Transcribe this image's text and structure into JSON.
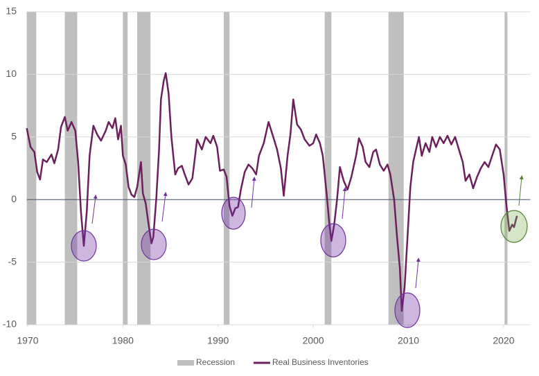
{
  "chart_data": {
    "type": "line",
    "xlim": [
      1969.9,
      2022.8
    ],
    "xticks": [
      1970,
      1980,
      1990,
      2000,
      2010,
      2020
    ],
    "ylim": [
      -10,
      15
    ],
    "yticks": [
      -10,
      -5,
      0,
      5,
      10,
      15
    ],
    "grid": true,
    "recessions": {
      "name": "Recession",
      "color": "#bfbfbf",
      "ranges": [
        [
          1969.9,
          1970.9
        ],
        [
          1973.9,
          1975.2
        ],
        [
          1980.0,
          1980.5
        ],
        [
          1981.5,
          1982.9
        ],
        [
          1990.6,
          1991.2
        ],
        [
          2001.2,
          2001.9
        ],
        [
          2007.9,
          2009.5
        ],
        [
          2020.1,
          2020.4
        ]
      ]
    },
    "x": [
      1969.9,
      1970.3,
      1970.7,
      1971.0,
      1971.3,
      1971.6,
      1972.0,
      1972.5,
      1972.8,
      1973.2,
      1973.5,
      1973.9,
      1974.2,
      1974.6,
      1975.0,
      1975.3,
      1975.6,
      1975.9,
      1976.2,
      1976.5,
      1976.9,
      1977.3,
      1977.7,
      1978.2,
      1978.5,
      1978.9,
      1979.2,
      1979.5,
      1979.8,
      1980.0,
      1980.3,
      1980.6,
      1980.9,
      1981.2,
      1981.5,
      1981.9,
      1982.1,
      1982.4,
      1982.7,
      1983.0,
      1983.2,
      1983.5,
      1983.8,
      1984.0,
      1984.3,
      1984.5,
      1984.8,
      1985.1,
      1985.5,
      1985.8,
      1986.2,
      1986.5,
      1986.9,
      1987.3,
      1987.8,
      1988.3,
      1988.7,
      1989.2,
      1989.5,
      1989.9,
      1990.2,
      1990.6,
      1990.9,
      1991.2,
      1991.5,
      1991.8,
      1992.1,
      1992.4,
      1992.8,
      1993.2,
      1993.6,
      1994.0,
      1994.3,
      1994.8,
      1995.3,
      1995.8,
      1996.2,
      1996.6,
      1996.9,
      1997.3,
      1997.6,
      1997.9,
      1998.3,
      1998.7,
      1999.1,
      1999.6,
      2000.0,
      2000.3,
      2000.7,
      2001.0,
      2001.4,
      2001.7,
      2001.9,
      2002.2,
      2002.5,
      2002.8,
      2003.2,
      2003.6,
      2004.0,
      2004.5,
      2004.8,
      2005.2,
      2005.5,
      2005.9,
      2006.3,
      2006.6,
      2007.0,
      2007.4,
      2007.8,
      2008.1,
      2008.5,
      2008.8,
      2009.1,
      2009.3,
      2009.6,
      2009.9,
      2010.2,
      2010.5,
      2010.8,
      2011.1,
      2011.4,
      2011.8,
      2012.2,
      2012.5,
      2012.9,
      2013.3,
      2013.7,
      2014.1,
      2014.5,
      2014.9,
      2015.3,
      2015.7,
      2016.0,
      2016.4,
      2016.8,
      2017.2,
      2017.6,
      2018.0,
      2018.4,
      2018.8,
      2019.2,
      2019.6,
      2020.0,
      2020.3,
      2020.6,
      2020.9,
      2021.1,
      2021.4
    ],
    "series": [
      {
        "name": "Real Business Inventories",
        "color": "#6b1f5c",
        "values": [
          5.7,
          4.2,
          3.8,
          2.2,
          1.6,
          3.2,
          3.0,
          3.6,
          2.9,
          4.0,
          5.8,
          6.6,
          5.5,
          6.2,
          5.5,
          3.0,
          -1.0,
          -3.7,
          -1.0,
          3.5,
          5.9,
          5.2,
          4.7,
          5.5,
          6.2,
          5.7,
          6.5,
          4.8,
          5.9,
          3.5,
          2.8,
          1.0,
          0.4,
          0.2,
          1.0,
          3.0,
          0.5,
          -0.3,
          -2.0,
          -3.5,
          -3.0,
          0,
          4.0,
          8.0,
          9.5,
          10.1,
          8.5,
          5.0,
          2.0,
          2.5,
          2.7,
          2.0,
          1.2,
          1.7,
          4.8,
          4.0,
          5.0,
          4.5,
          5.1,
          4.2,
          2.3,
          2.4,
          1.8,
          -0.5,
          -1.3,
          -0.7,
          -0.6,
          0.8,
          2.2,
          2.8,
          2.5,
          2.0,
          3.5,
          4.5,
          6.2,
          5.0,
          4.0,
          2.5,
          0.3,
          3.5,
          5.2,
          8.0,
          6.0,
          5.6,
          4.8,
          4.3,
          4.5,
          5.2,
          4.5,
          3.5,
          0.5,
          -2.0,
          -3.3,
          -2.0,
          0,
          2.6,
          1.5,
          0.8,
          1.8,
          3.5,
          4.9,
          4.2,
          3.0,
          2.6,
          3.8,
          4.0,
          2.8,
          2.3,
          2.8,
          2.0,
          0,
          -3.0,
          -5.5,
          -8.9,
          -7.0,
          -3.0,
          1.0,
          3.0,
          4.0,
          5.0,
          3.5,
          4.5,
          3.8,
          5.0,
          4.2,
          5.0,
          4.5,
          5.1,
          4.4,
          5.0,
          4.0,
          3.0,
          1.5,
          2.0,
          0.9,
          1.8,
          2.5,
          3.0,
          2.6,
          3.5,
          4.4,
          4.0,
          2.0,
          -0.5,
          -2.5,
          -2.0,
          -2.2,
          -1.3
        ]
      }
    ]
  }
}
